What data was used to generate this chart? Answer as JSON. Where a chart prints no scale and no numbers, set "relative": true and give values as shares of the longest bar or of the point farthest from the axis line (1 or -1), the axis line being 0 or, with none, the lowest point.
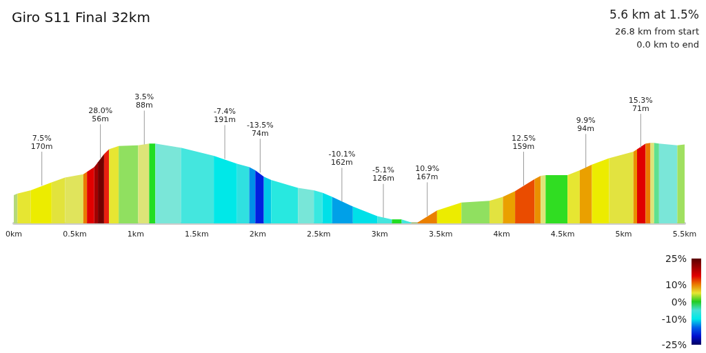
{
  "chart_data": {
    "type": "area",
    "title": "Giro S11 Final 32km",
    "relative": true,
    "annotations": [
      "5.6 km at 1.5%",
      "26.8 km from start",
      "0.0 km to end",
      {
        "text": "7.5%\n170m",
        "x": 0.23,
        "y": 0.47
      },
      {
        "text": "28.0%\n56m",
        "x": 0.71,
        "y": 0.81
      },
      {
        "text": "3.5%\n88m",
        "x": 1.07,
        "y": 0.98
      },
      {
        "text": "-7.4%\n191m",
        "x": 1.73,
        "y": 0.8
      },
      {
        "text": "-13.5%\n74m",
        "x": 2.02,
        "y": 0.63
      },
      {
        "text": "-10.1%\n162m",
        "x": 2.69,
        "y": 0.27
      },
      {
        "text": "-5.1%\n126m",
        "x": 3.03,
        "y": 0.07
      },
      {
        "text": "10.9%\n167m",
        "x": 3.39,
        "y": 0.09
      },
      {
        "text": "12.5%\n159m",
        "x": 4.18,
        "y": 0.47
      },
      {
        "text": "9.9%\n94m",
        "x": 4.69,
        "y": 0.69
      },
      {
        "text": "15.3%\n71m",
        "x": 5.14,
        "y": 0.94
      }
    ],
    "xlim": [
      0,
      5.5
    ],
    "xticks": [
      {
        "value": 0,
        "label": "0km"
      },
      {
        "value": 0.5,
        "label": "0.5km"
      },
      {
        "value": 1,
        "label": "1km"
      },
      {
        "value": 1.5,
        "label": "1.5km"
      },
      {
        "value": 2,
        "label": "2km"
      },
      {
        "value": 2.5,
        "label": "2.5km"
      },
      {
        "value": 3,
        "label": "3km"
      },
      {
        "value": 3.5,
        "label": "3.5km"
      },
      {
        "value": 4,
        "label": "4km"
      },
      {
        "value": 4.5,
        "label": "4.5km"
      },
      {
        "value": 5,
        "label": "5km"
      },
      {
        "value": 5.5,
        "label": "5.5km"
      }
    ],
    "clim": [
      -25,
      25
    ],
    "cticks": [
      {
        "value": 25,
        "label": "25%"
      },
      {
        "value": 10,
        "label": "10%"
      },
      {
        "value": 0,
        "label": "0%"
      },
      {
        "value": -10,
        "label": "-10%"
      },
      {
        "value": -25,
        "label": "-25%"
      }
    ],
    "grid": false,
    "series": [
      {
        "color": "#b5d97a",
        "x": [
          0,
          0.03
        ],
        "values": [
          0.35,
          0.37
        ]
      },
      {
        "color": "#e6e632",
        "x": [
          0.03,
          0.14
        ],
        "values": [
          0.37,
          0.41
        ]
      },
      {
        "color": "#ecec00",
        "x": [
          0.14,
          0.31
        ],
        "values": [
          0.41,
          0.51
        ]
      },
      {
        "color": "#e2e33c",
        "x": [
          0.31,
          0.42
        ],
        "values": [
          0.51,
          0.57
        ]
      },
      {
        "color": "#e0e45c",
        "x": [
          0.42,
          0.57
        ],
        "values": [
          0.57,
          0.61
        ]
      },
      {
        "color": "#ea7a00",
        "x": [
          0.57,
          0.6
        ],
        "values": [
          0.61,
          0.64
        ]
      },
      {
        "color": "#e00000",
        "x": [
          0.6,
          0.66
        ],
        "values": [
          0.64,
          0.7
        ]
      },
      {
        "color": "#a00000",
        "x": [
          0.66,
          0.69
        ],
        "values": [
          0.7,
          0.76
        ]
      },
      {
        "color": "#720000",
        "x": [
          0.69,
          0.74
        ],
        "values": [
          0.76,
          0.86
        ]
      },
      {
        "color": "#e82010",
        "x": [
          0.74,
          0.78
        ],
        "values": [
          0.86,
          0.92
        ]
      },
      {
        "color": "#e6e632",
        "x": [
          0.78,
          0.86
        ],
        "values": [
          0.92,
          0.96
        ]
      },
      {
        "color": "#90e060",
        "x": [
          0.86,
          1.02
        ],
        "values": [
          0.96,
          0.97
        ]
      },
      {
        "color": "#dde478",
        "x": [
          1.02,
          1.11
        ],
        "values": [
          0.97,
          0.99
        ]
      },
      {
        "color": "#22dd22",
        "x": [
          1.11,
          1.16
        ],
        "values": [
          0.99,
          0.99
        ]
      },
      {
        "color": "#7ae6d8",
        "x": [
          1.16,
          1.37
        ],
        "values": [
          0.99,
          0.94
        ]
      },
      {
        "color": "#44e6de",
        "x": [
          1.37,
          1.64
        ],
        "values": [
          0.94,
          0.84
        ]
      },
      {
        "color": "#00e8e8",
        "x": [
          1.64,
          1.83
        ],
        "values": [
          0.84,
          0.74
        ]
      },
      {
        "color": "#30e0e0",
        "x": [
          1.83,
          1.93
        ],
        "values": [
          0.74,
          0.7
        ]
      },
      {
        "color": "#0090e8",
        "x": [
          1.93,
          1.98
        ],
        "values": [
          0.7,
          0.66
        ]
      },
      {
        "color": "#0020e0",
        "x": [
          1.98,
          2.05
        ],
        "values": [
          0.66,
          0.58
        ]
      },
      {
        "color": "#00c8e8",
        "x": [
          2.05,
          2.11
        ],
        "values": [
          0.58,
          0.54
        ]
      },
      {
        "color": "#28e8e0",
        "x": [
          2.11,
          2.33
        ],
        "values": [
          0.54,
          0.44
        ]
      },
      {
        "color": "#78e6d8",
        "x": [
          2.33,
          2.46
        ],
        "values": [
          0.44,
          0.41
        ]
      },
      {
        "color": "#38e8e0",
        "x": [
          2.46,
          2.53
        ],
        "values": [
          0.41,
          0.38
        ]
      },
      {
        "color": "#00e0e8",
        "x": [
          2.53,
          2.61
        ],
        "values": [
          0.38,
          0.33
        ]
      },
      {
        "color": "#00a0e8",
        "x": [
          2.61,
          2.78
        ],
        "values": [
          0.33,
          0.21
        ]
      },
      {
        "color": "#00e0e8",
        "x": [
          2.78,
          2.98
        ],
        "values": [
          0.21,
          0.09
        ]
      },
      {
        "color": "#44e6de",
        "x": [
          2.98,
          3.1
        ],
        "values": [
          0.09,
          0.05
        ]
      },
      {
        "color": "#22dd22",
        "x": [
          3.1,
          3.18
        ],
        "values": [
          0.05,
          0.05
        ]
      },
      {
        "color": "#44e6de",
        "x": [
          3.18,
          3.26
        ],
        "values": [
          0.05,
          0.01
        ]
      },
      {
        "color": "#a0c860",
        "x": [
          3.26,
          3.31
        ],
        "values": [
          0.01,
          0.01
        ]
      },
      {
        "color": "#ea8000",
        "x": [
          3.31,
          3.47
        ],
        "values": [
          0.01,
          0.16
        ]
      },
      {
        "color": "#ecec00",
        "x": [
          3.47,
          3.67
        ],
        "values": [
          0.16,
          0.26
        ]
      },
      {
        "color": "#90e060",
        "x": [
          3.67,
          3.9
        ],
        "values": [
          0.26,
          0.28
        ]
      },
      {
        "color": "#e2e340",
        "x": [
          3.9,
          4.01
        ],
        "values": [
          0.28,
          0.33
        ]
      },
      {
        "color": "#eaa000",
        "x": [
          4.01,
          4.11
        ],
        "values": [
          0.33,
          0.4
        ]
      },
      {
        "color": "#ea4c00",
        "x": [
          4.11,
          4.27
        ],
        "values": [
          0.4,
          0.55
        ]
      },
      {
        "color": "#ea9000",
        "x": [
          4.27,
          4.32
        ],
        "values": [
          0.55,
          0.59
        ]
      },
      {
        "color": "#dde478",
        "x": [
          4.32,
          4.36
        ],
        "values": [
          0.59,
          0.6
        ]
      },
      {
        "color": "#30dd22",
        "x": [
          4.36,
          4.54
        ],
        "values": [
          0.6,
          0.6
        ]
      },
      {
        "color": "#e6e632",
        "x": [
          4.54,
          4.64
        ],
        "values": [
          0.6,
          0.66
        ]
      },
      {
        "color": "#eaa000",
        "x": [
          4.64,
          4.74
        ],
        "values": [
          0.66,
          0.73
        ]
      },
      {
        "color": "#ecec00",
        "x": [
          4.74,
          4.88
        ],
        "values": [
          0.73,
          0.81
        ]
      },
      {
        "color": "#e2e340",
        "x": [
          4.88,
          5.08
        ],
        "values": [
          0.81,
          0.89
        ]
      },
      {
        "color": "#ea9000",
        "x": [
          5.08,
          5.11
        ],
        "values": [
          0.89,
          0.92
        ]
      },
      {
        "color": "#e00000",
        "x": [
          5.11,
          5.18
        ],
        "values": [
          0.92,
          0.99
        ]
      },
      {
        "color": "#ea7a00",
        "x": [
          5.18,
          5.22
        ],
        "values": [
          0.99,
          1
        ]
      },
      {
        "color": "#dde478",
        "x": [
          5.22,
          5.25
        ],
        "values": [
          1,
          1
        ]
      },
      {
        "color": "#60e090",
        "x": [
          5.25,
          5.29
        ],
        "values": [
          1,
          0.99
        ]
      },
      {
        "color": "#7ae6d8",
        "x": [
          5.29,
          5.44
        ],
        "values": [
          0.99,
          0.97
        ]
      },
      {
        "color": "#a0e060",
        "x": [
          5.44,
          5.5
        ],
        "values": [
          0.97,
          0.98
        ]
      }
    ]
  }
}
